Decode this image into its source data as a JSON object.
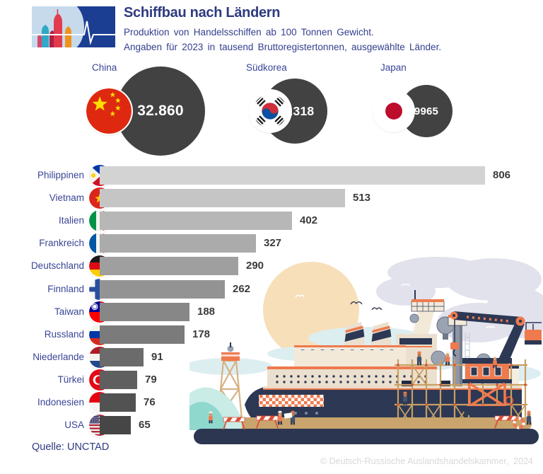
{
  "header": {
    "title": "Schiffbau nach Ländern",
    "subtitle_line1": "Produktion von Handelsschiffen ab 100 Tonnen Gewicht.",
    "subtitle_line2": "Angaben für 2023 in tausend Bruttoregistertonnen, ausgewählte Länder."
  },
  "chart_data": {
    "type": "bar",
    "title": "Schiffbau nach Ländern",
    "subtitle": "Produktion von Handelsschiffen ab 100 Tonnen Gewicht, 2023, in tausend Bruttoregistertonnen",
    "legend_position": "none",
    "grid": false,
    "xlim": [
      0,
      806
    ],
    "top_circles": [
      {
        "label": "China",
        "value": 32860,
        "value_label": "32.860",
        "flag": "cn"
      },
      {
        "label": "Südkorea",
        "value": 18318,
        "value_label": "18.318",
        "flag": "kr"
      },
      {
        "label": "Japan",
        "value": 9965,
        "value_label": "9965",
        "flag": "jp"
      }
    ],
    "categories": [
      "Philippinen",
      "Vietnam",
      "Italien",
      "Frankreich",
      "Deutschland",
      "Finnland",
      "Taiwan",
      "Russland",
      "Niederlande",
      "Türkei",
      "Indonesien",
      "USA"
    ],
    "values": [
      806,
      513,
      402,
      327,
      290,
      262,
      188,
      178,
      91,
      79,
      76,
      65
    ],
    "bars": [
      {
        "label": "Philippinen",
        "value": 806,
        "flag": "ph",
        "color": "#d3d3d3"
      },
      {
        "label": "Vietnam",
        "value": 513,
        "flag": "vn",
        "color": "#c5c5c5"
      },
      {
        "label": "Italien",
        "value": 402,
        "flag": "it",
        "color": "#b7b7b7"
      },
      {
        "label": "Frankreich",
        "value": 327,
        "flag": "fr",
        "color": "#ababab"
      },
      {
        "label": "Deutschland",
        "value": 290,
        "flag": "de",
        "color": "#9f9f9f"
      },
      {
        "label": "Finnland",
        "value": 262,
        "flag": "fi",
        "color": "#939393"
      },
      {
        "label": "Taiwan",
        "value": 188,
        "flag": "tw",
        "color": "#878787"
      },
      {
        "label": "Russland",
        "value": 178,
        "flag": "ru",
        "color": "#7b7b7b"
      },
      {
        "label": "Niederlande",
        "value": 91,
        "flag": "nl",
        "color": "#6b6b6b"
      },
      {
        "label": "Türkei",
        "value": 79,
        "flag": "tr",
        "color": "#5f5f5f"
      },
      {
        "label": "Indonesien",
        "value": 76,
        "flag": "id",
        "color": "#525252"
      },
      {
        "label": "USA",
        "value": 65,
        "flag": "us",
        "color": "#464646"
      }
    ]
  },
  "source": "Quelle: UNCTAD",
  "copyright": "© Deutsch-Russische Auslandshandelskammer,  2024",
  "icons": {
    "logo": "kremlin-pulse-logo",
    "illustration": "shipyard-scene"
  },
  "colors": {
    "title_text": "#2e3a80",
    "subtitle_text": "#333f8c",
    "label_text": "#3a4596",
    "value_text": "#3b3b3b",
    "circle_fill": "#424242",
    "copyright_text": "#d8d8d8",
    "logo_dark_blue": "#1c3e92",
    "logo_light_blue": "#c6daec",
    "illustration_orange": "#ee7a4e",
    "illustration_navy": "#2d3854"
  }
}
